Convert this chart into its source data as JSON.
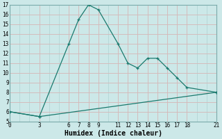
{
  "xlabel": "Humidex (Indice chaleur)",
  "line1_x": [
    0,
    3,
    6,
    7,
    8,
    9,
    11,
    12,
    13,
    14,
    15,
    16,
    17,
    18,
    21
  ],
  "line1_y": [
    6,
    5.5,
    13,
    15.5,
    17,
    16.5,
    13,
    11,
    10.5,
    11.5,
    11.5,
    10.5,
    9.5,
    8.5,
    8
  ],
  "line2_x": [
    0,
    3,
    21
  ],
  "line2_y": [
    6,
    5.5,
    8
  ],
  "line_color": "#1a7a6e",
  "bg_color": "#cce8e8",
  "pink_grid_color": "#d9b8b8",
  "teal_grid_color": "#a8cccc",
  "ylim": [
    5,
    17
  ],
  "xlim": [
    0,
    21
  ],
  "yticks": [
    5,
    6,
    7,
    8,
    9,
    10,
    11,
    12,
    13,
    14,
    15,
    16,
    17
  ],
  "xticks": [
    0,
    3,
    6,
    7,
    8,
    9,
    11,
    12,
    13,
    14,
    15,
    16,
    17,
    18,
    21
  ],
  "xlabel_fontsize": 7,
  "tick_fontsize": 5.5
}
